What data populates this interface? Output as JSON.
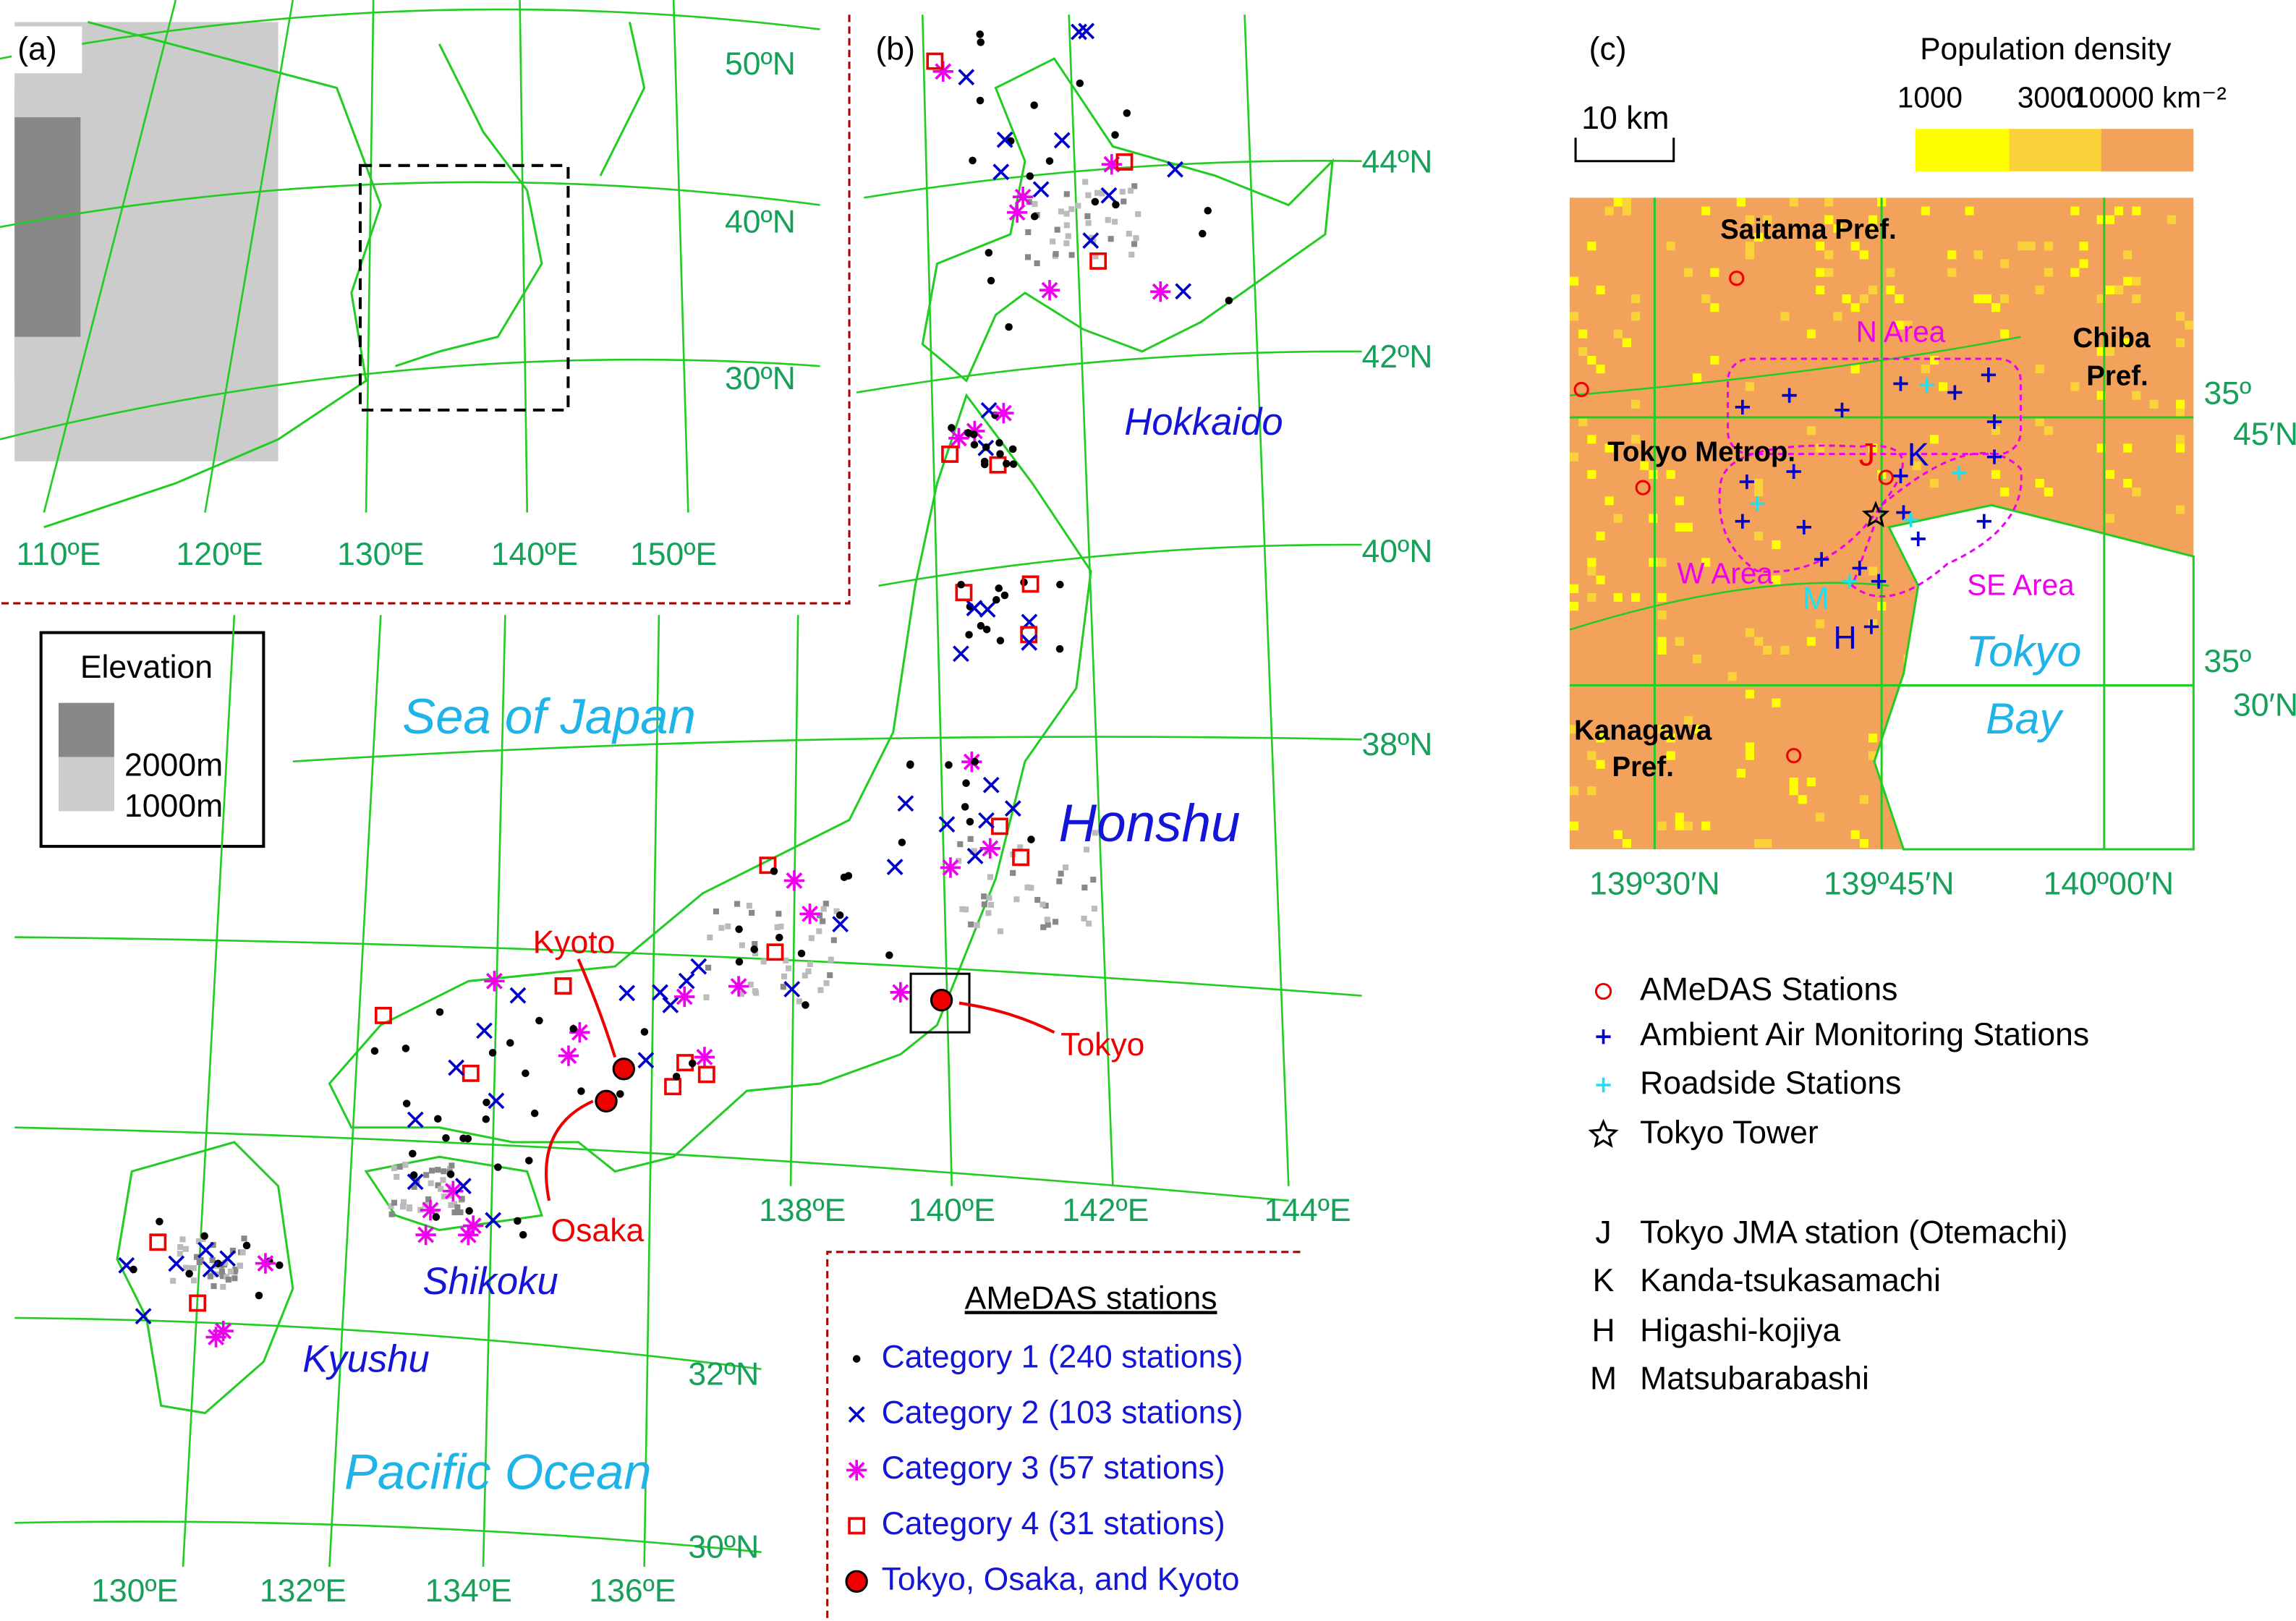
{
  "panel_a": {
    "label": "(a)",
    "lat_labels": [
      "50ºN",
      "40ºN",
      "30ºN"
    ],
    "lon_labels": [
      "110ºE",
      "120ºE",
      "130ºE",
      "140ºE",
      "150ºE"
    ]
  },
  "elevation_legend": {
    "title": "Elevation",
    "levels": [
      "2000m",
      "1000m"
    ]
  },
  "panel_b": {
    "label": "(b)",
    "lat_labels": [
      "44ºN",
      "42ºN",
      "40ºN",
      "38ºN",
      "32ºN",
      "30ºN"
    ],
    "lon_labels": [
      "130ºE",
      "132ºE",
      "134ºE",
      "136ºE",
      "138ºE",
      "140ºE",
      "142ºE",
      "144ºE"
    ],
    "seas": [
      "Sea of Japan",
      "Pacific Ocean"
    ],
    "islands": [
      "Hokkaido",
      "Honshu",
      "Shikoku",
      "Kyushu"
    ],
    "cities": [
      "Kyoto",
      "Tokyo",
      "Osaka"
    ],
    "legend": {
      "title": "AMeDAS stations",
      "items": [
        "Category 1 (240 stations)",
        "Category 2 (103 stations)",
        "Category 3 (57 stations)",
        "Category 4 (31 stations)",
        "Tokyo, Osaka, and Kyoto"
      ]
    }
  },
  "panel_c": {
    "label": "(c)",
    "colorbar": {
      "title": "Population density",
      "ticks": [
        "1000",
        "3000",
        "10000 km⁻²"
      ]
    },
    "scale_bar": "10 km",
    "prefectures": {
      "saitama": "Saitama Pref.",
      "chiba": [
        "Chiba",
        "Pref."
      ],
      "tokyo": "Tokyo Metrop.",
      "kanagawa": [
        "Kanagawa",
        "Pref."
      ]
    },
    "areas": [
      "N Area",
      "W Area",
      "SE Area"
    ],
    "station_letters": [
      "J",
      "K",
      "H",
      "M"
    ],
    "bay": [
      "Tokyo",
      "Bay"
    ],
    "lat_labels": [
      [
        "35º",
        "45′N"
      ],
      [
        "35º",
        "30′N"
      ]
    ],
    "lon_labels": [
      "139º30′N",
      "139º45′N",
      "140º00′N"
    ],
    "legend": {
      "symbols": [
        "AMeDAS Stations",
        "Ambient Air Monitoring Stations",
        "Roadside Stations",
        "Tokyo Tower"
      ],
      "stations": [
        {
          "code": "J",
          "name": "Tokyo JMA station (Otemachi)"
        },
        {
          "code": "K",
          "name": "Kanda-tsukasamachi"
        },
        {
          "code": "H",
          "name": "Higashi-kojiya"
        },
        {
          "code": "M",
          "name": "Matsubarabashi"
        }
      ]
    }
  }
}
